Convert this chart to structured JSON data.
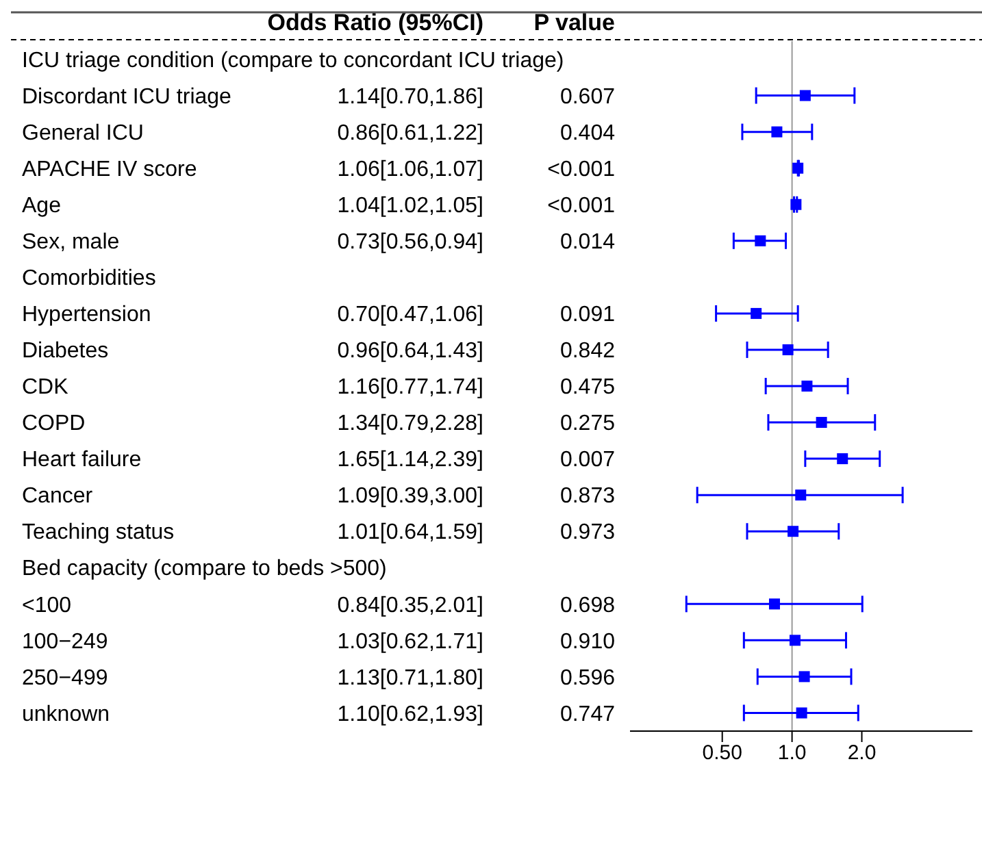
{
  "chart_data": {
    "type": "scatter",
    "orientation": "horizontal",
    "log": "x",
    "marker": "square",
    "legend": false,
    "annotations": [
      "Odds Ratio (95%CI)",
      "P value",
      "0.607",
      "0.404",
      "<0.001",
      "<0.001",
      "0.014",
      "0.091",
      "0.842",
      "0.475",
      "0.275",
      "0.007",
      "0.873",
      "0.973",
      "0.698",
      "0.910",
      "0.596",
      "0.747"
    ],
    "categories": [
      "ICU triage condition (compare to concordant ICU triage)",
      "Discordant ICU triage",
      "General ICU",
      "APACHE IV score",
      "Age",
      "Sex, male",
      "Comorbidities",
      "Hypertension",
      "Diabetes",
      "CDK",
      "COPD",
      "Heart failure",
      "Cancer",
      "Teaching status",
      "Bed capacity (compare to beds >500)",
      "<100",
      "100−249",
      "250−499",
      "unknown"
    ],
    "series": [
      {
        "color": "#0000ff",
        "values": [
          null,
          1.14,
          0.86,
          1.06,
          1.04,
          0.73,
          null,
          0.7,
          0.96,
          1.16,
          1.34,
          1.65,
          1.09,
          1.01,
          null,
          0.84,
          1.03,
          1.13,
          1.1
        ],
        "errors": [
          null,
          [
            0.7,
            1.86
          ],
          [
            0.61,
            1.22
          ],
          [
            1.06,
            1.07
          ],
          [
            1.02,
            1.05
          ],
          [
            0.56,
            0.94
          ],
          null,
          [
            0.47,
            1.06
          ],
          [
            0.64,
            1.43
          ],
          [
            0.77,
            1.74
          ],
          [
            0.79,
            2.28
          ],
          [
            1.14,
            2.39
          ],
          [
            0.39,
            3.0
          ],
          [
            0.64,
            1.59
          ],
          null,
          [
            0.35,
            2.01
          ],
          [
            0.62,
            1.71
          ],
          [
            0.71,
            1.8
          ],
          [
            0.62,
            1.93
          ]
        ],
        "value_labels": [
          null,
          "1.14[0.70,1.86]",
          "0.86[0.61,1.22]",
          "1.06[1.06,1.07]",
          "1.04[1.02,1.05]",
          "0.73[0.56,0.94]",
          null,
          "0.70[0.47,1.06]",
          "0.96[0.64,1.43]",
          "1.16[0.77,1.74]",
          "1.34[0.79,2.28]",
          "1.65[1.14,2.39]",
          "1.09[0.39,3.00]",
          "1.01[0.64,1.59]",
          null,
          "0.84[0.35,2.01]",
          "1.03[0.62,1.71]",
          "1.13[0.71,1.80]",
          "1.10[0.62,1.93]"
        ]
      }
    ],
    "xlim": [
      0.2,
      6
    ],
    "xticks": [
      {
        "value": 0.5,
        "label": "0.50"
      },
      {
        "value": 1,
        "label": "1.0"
      },
      {
        "value": 2,
        "label": "2.0"
      }
    ],
    "ref_lines": [
      {
        "axis": "x",
        "value": 1,
        "color": "#999999"
      }
    ]
  }
}
